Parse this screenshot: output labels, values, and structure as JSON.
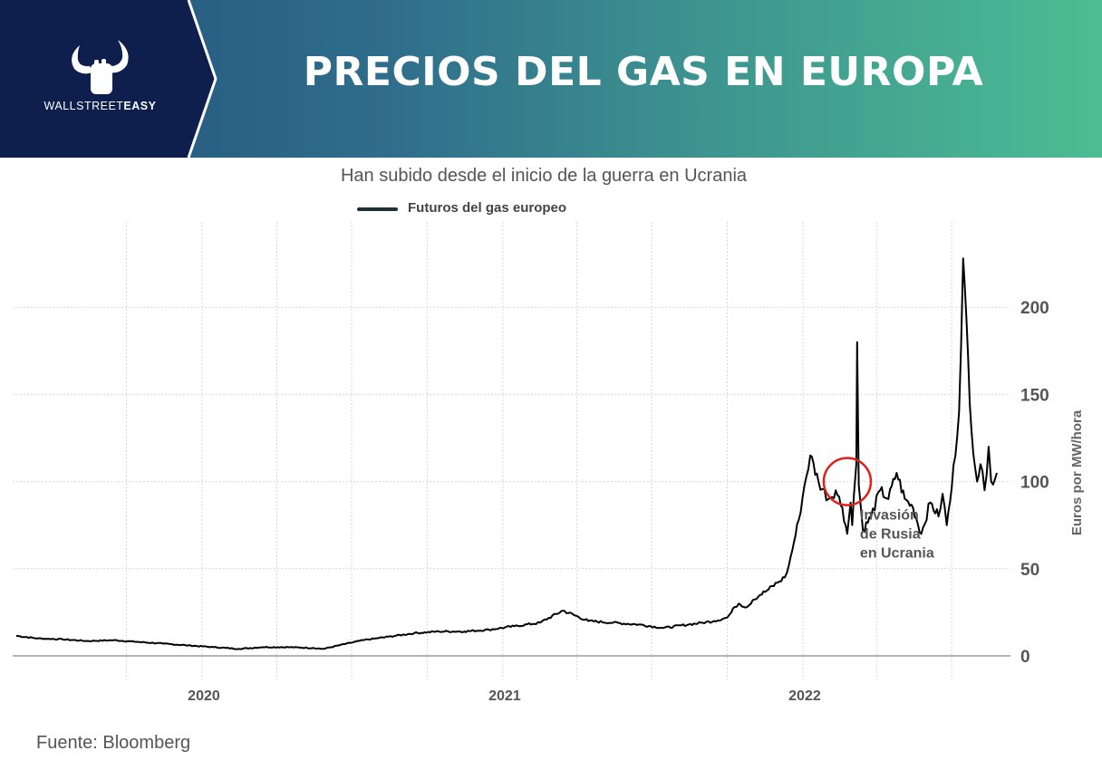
{
  "header": {
    "title": "PRECIOS DEL GAS EN EUROPA",
    "brand_part1": "WALLSTREET",
    "brand_part2": "EASY",
    "logo_icon": "bull-hand-icon"
  },
  "source": "Fuente: Bloomberg",
  "colors": {
    "header_start": "#22527a",
    "header_end": "#4cbd92",
    "logo_bg": "#0e1f4d",
    "line": "#000000",
    "annotation_circle": "#e0201b"
  },
  "chart_data": {
    "type": "line",
    "subtitle": "Han subido desde el inicio de la guerra en Ucrania",
    "ylabel": "Euros por MW/hora",
    "xlabel": "",
    "ylim": [
      0,
      230
    ],
    "y_ticks": [
      "0",
      "50",
      "100",
      "150",
      "200"
    ],
    "x_ticks": [
      "2020",
      "2021",
      "2022"
    ],
    "grid": true,
    "legend_position": "top-center",
    "annotation": {
      "lines": [
        "Invasión",
        "de Rusia",
        "en Ucrania"
      ],
      "date": "2022-02-24",
      "value": 100
    },
    "series": [
      {
        "name": "Futuros del gas europeo",
        "x": [
          "2019-05-20",
          "2019-06-15",
          "2019-07-15",
          "2019-08-15",
          "2019-09-15",
          "2019-10-15",
          "2019-11-15",
          "2019-12-15",
          "2020-01-15",
          "2020-02-15",
          "2020-03-15",
          "2020-04-15",
          "2020-05-15",
          "2020-05-28",
          "2020-06-15",
          "2020-07-15",
          "2020-08-15",
          "2020-09-15",
          "2020-10-15",
          "2020-11-15",
          "2020-12-15",
          "2021-01-15",
          "2021-02-15",
          "2021-03-15",
          "2021-04-15",
          "2021-05-15",
          "2021-06-15",
          "2021-07-15",
          "2021-08-15",
          "2021-09-01",
          "2021-09-15",
          "2021-10-01",
          "2021-10-06",
          "2021-10-10",
          "2021-10-15",
          "2021-10-25",
          "2021-11-01",
          "2021-11-10",
          "2021-11-20",
          "2021-12-01",
          "2021-12-10",
          "2021-12-15",
          "2021-12-21",
          "2021-12-27",
          "2022-01-03",
          "2022-01-10",
          "2022-01-20",
          "2022-02-01",
          "2022-02-10",
          "2022-02-18",
          "2022-02-24",
          "2022-02-28",
          "2022-03-02",
          "2022-03-04",
          "2022-03-07",
          "2022-03-08",
          "2022-03-10",
          "2022-03-15",
          "2022-03-25",
          "2022-04-05",
          "2022-04-15",
          "2022-04-25",
          "2022-05-05",
          "2022-05-15",
          "2022-05-25",
          "2022-06-05",
          "2022-06-15",
          "2022-06-20",
          "2022-06-25",
          "2022-07-01",
          "2022-07-10",
          "2022-07-15",
          "2022-07-25",
          "2022-08-01",
          "2022-08-05",
          "2022-08-10",
          "2022-08-15",
          "2022-08-18",
          "2022-08-25"
        ],
        "values": [
          11.5,
          10,
          9.5,
          8.5,
          9,
          8,
          7,
          6,
          5,
          4,
          5,
          5,
          4.5,
          4,
          6,
          9,
          11,
          13,
          14,
          14,
          15,
          17,
          19,
          26,
          20,
          19,
          18,
          16,
          18,
          19,
          20,
          22,
          25,
          28,
          30,
          28,
          32,
          35,
          38,
          42,
          45,
          52,
          65,
          78,
          98,
          115,
          100,
          90,
          95,
          85,
          70,
          88,
          75,
          92,
          110,
          180,
          98,
          72,
          80,
          95,
          90,
          105,
          90,
          85,
          70,
          88,
          80,
          93,
          75,
          96,
          140,
          228,
          130,
          100,
          110,
          95,
          120,
          100,
          105
        ]
      }
    ]
  }
}
